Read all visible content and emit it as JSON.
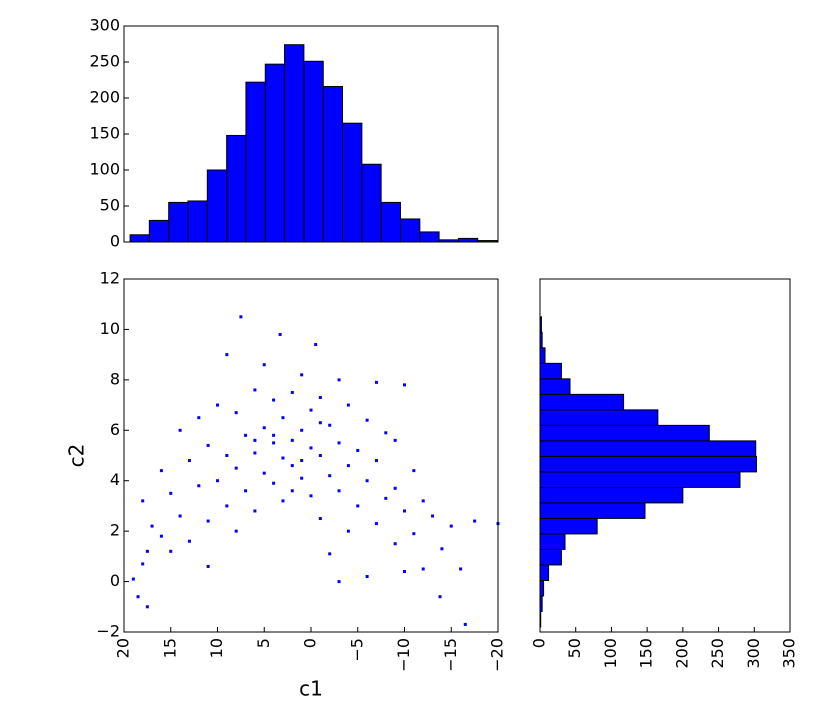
{
  "chart_data": [
    {
      "type": "histogram",
      "orientation": "vertical",
      "color": "#0000ff",
      "bins": [
        -19.9,
        -17.83,
        -15.77,
        -13.7,
        -11.64,
        -9.57,
        -7.5,
        -5.44,
        -3.37,
        -1.31,
        0.76,
        2.83,
        4.89,
        6.96,
        9.02,
        11.09,
        13.16,
        15.22,
        17.29,
        19.35
      ],
      "values": [
        2,
        5,
        3,
        14,
        32,
        55,
        108,
        165,
        216,
        251,
        274,
        247,
        222,
        148,
        100,
        57,
        55,
        30,
        10
      ],
      "xlim": [
        20,
        -20
      ],
      "ylim": [
        0,
        300
      ],
      "yticks": [
        0,
        50,
        100,
        150,
        200,
        250,
        300
      ]
    },
    {
      "type": "scatter",
      "color": "#0000ff",
      "x_label": "c1",
      "y_label": "c2",
      "x": [
        7.5,
        3.3,
        -0.5,
        9,
        5,
        1,
        -3,
        -7,
        -10,
        6,
        2,
        -1,
        4,
        10,
        -4,
        0,
        8,
        12,
        3,
        -6,
        -2,
        5,
        1,
        14,
        -8,
        7,
        -9,
        2,
        -3,
        4,
        11,
        0,
        -5,
        6,
        9,
        -1,
        3,
        13,
        -7,
        2,
        -4,
        8,
        16,
        -11,
        5,
        -2,
        1,
        10,
        -6,
        4,
        12,
        -9,
        -3,
        7,
        15,
        0,
        -8,
        3,
        -12,
        18,
        9,
        -5,
        -10,
        6,
        14,
        -13,
        -1,
        11,
        -7,
        17,
        -15,
        -4,
        8,
        -11,
        16,
        13,
        -9,
        -14,
        15,
        17.5,
        -2,
        11,
        -12,
        -16,
        18,
        -10,
        -6,
        -3,
        19,
        -13.8,
        18.5,
        17.5,
        -16.5,
        -17.5,
        -20,
        4,
        1,
        -1,
        6,
        2
      ],
      "y": [
        10.5,
        9.8,
        9.4,
        9,
        8.6,
        8.2,
        8,
        7.9,
        7.8,
        7.6,
        7.5,
        7.3,
        7.2,
        7,
        7,
        6.8,
        6.7,
        6.5,
        6.5,
        6.4,
        6.2,
        6.1,
        6,
        6,
        5.9,
        5.8,
        5.6,
        5.6,
        5.5,
        5.5,
        5.4,
        5.3,
        5.2,
        5.1,
        5,
        5,
        4.9,
        4.8,
        4.8,
        4.6,
        4.6,
        4.5,
        4.4,
        4.4,
        4.3,
        4.2,
        4.1,
        4,
        4,
        3.9,
        3.8,
        3.7,
        3.6,
        3.6,
        3.5,
        3.4,
        3.3,
        3.2,
        3.2,
        3.2,
        3,
        3,
        2.8,
        2.8,
        2.6,
        2.6,
        2.5,
        2.4,
        2.3,
        2.2,
        2.2,
        2,
        2,
        1.9,
        1.8,
        1.6,
        1.5,
        1.3,
        1.2,
        1.2,
        1.1,
        0.6,
        0.5,
        0.5,
        0.7,
        0.4,
        0.2,
        0,
        0.1,
        -0.6,
        -0.6,
        -1,
        -1.7,
        2.4,
        2.3,
        5.8,
        4.8,
        6.3,
        5.6,
        3.6
      ],
      "xlim": [
        20,
        -20
      ],
      "xticks": [
        20,
        15,
        10,
        5,
        0,
        {
          "value": -5,
          "label": "−5"
        },
        {
          "value": -10,
          "label": "−10"
        },
        {
          "value": -15,
          "label": "−15"
        },
        {
          "value": -20,
          "label": "−20"
        }
      ],
      "ylim": [
        -2,
        12
      ],
      "yticks": [
        {
          "value": -2,
          "label": "−2"
        },
        0,
        2,
        4,
        6,
        8,
        10,
        12
      ]
    },
    {
      "type": "histogram",
      "orientation": "horizontal",
      "color": "#0000ff",
      "bins": [
        -1.8,
        -1.185,
        -0.57,
        0.045,
        0.66,
        1.275,
        1.89,
        2.505,
        3.12,
        3.735,
        4.35,
        4.965,
        5.58,
        6.195,
        6.81,
        7.425,
        8.04,
        8.655,
        9.27,
        9.885,
        10.5
      ],
      "values": [
        1,
        3,
        5,
        12,
        30,
        35,
        80,
        147,
        200,
        280,
        303,
        302,
        237,
        165,
        117,
        42,
        30,
        7,
        3,
        2
      ],
      "xlim": [
        0,
        350
      ],
      "xticks": [
        0,
        50,
        100,
        150,
        200,
        250,
        300,
        350
      ],
      "ylim": [
        -2,
        12
      ]
    }
  ]
}
